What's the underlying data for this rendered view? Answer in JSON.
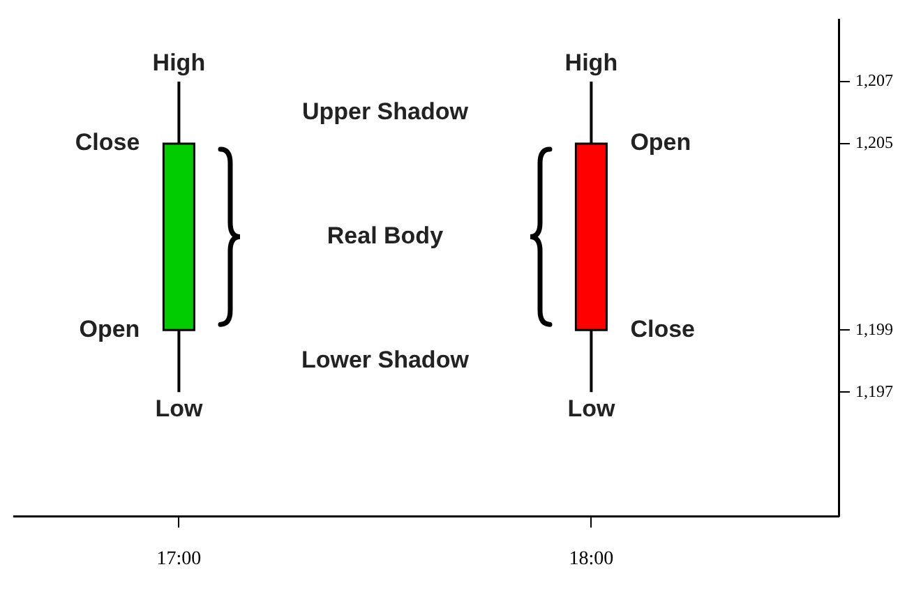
{
  "chart_data": {
    "type": "candlestick",
    "x": [
      17,
      18
    ],
    "ohlc": [
      [
        1199,
        1207,
        1197,
        1205
      ],
      [
        1205,
        1207,
        1197,
        1199
      ]
    ],
    "colors": [
      "#00cc00",
      "#ff0000"
    ],
    "xlim": [
      16.6,
      18.6
    ],
    "xticks": [
      {
        "value": 17,
        "label": "17:00"
      },
      {
        "value": 18,
        "label": "18:00"
      }
    ],
    "ylim": [
      1193,
      1209
    ],
    "yticks": [
      {
        "value": 1197,
        "label": "1,197"
      },
      {
        "value": 1199,
        "label": "1,199"
      },
      {
        "value": 1205,
        "label": "1,205"
      },
      {
        "value": 1207,
        "label": "1,207"
      }
    ],
    "annotations": [
      "High",
      "Close",
      "Open",
      "Low",
      "High",
      "Open",
      "Close",
      "Low",
      "Upper Shadow",
      "Real Body",
      "Lower Shadow"
    ]
  }
}
